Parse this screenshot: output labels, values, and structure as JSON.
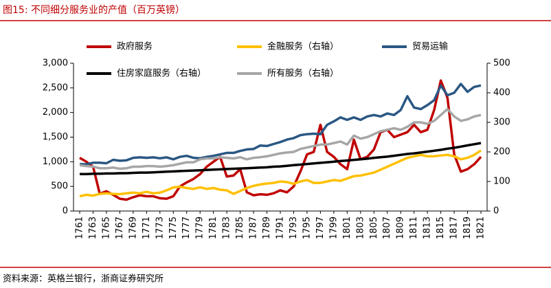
{
  "chart_data": {
    "type": "line",
    "title": "图15:  不同细分服务业的产值（百万英镑）",
    "source": "资料来源：英格兰银行，浙商证券研究所",
    "x": [
      1761,
      1762,
      1763,
      1764,
      1765,
      1766,
      1767,
      1768,
      1769,
      1770,
      1771,
      1772,
      1773,
      1774,
      1775,
      1776,
      1777,
      1778,
      1779,
      1780,
      1781,
      1782,
      1783,
      1784,
      1785,
      1786,
      1787,
      1788,
      1789,
      1790,
      1791,
      1792,
      1793,
      1794,
      1795,
      1796,
      1797,
      1798,
      1799,
      1800,
      1801,
      1802,
      1803,
      1804,
      1805,
      1806,
      1807,
      1808,
      1809,
      1810,
      1811,
      1812,
      1813,
      1814,
      1815,
      1816,
      1817,
      1818,
      1819,
      1820,
      1821
    ],
    "xlim": [
      1761,
      1821
    ],
    "xticks": [
      1761,
      1763,
      1765,
      1767,
      1769,
      1771,
      1773,
      1775,
      1777,
      1779,
      1781,
      1783,
      1785,
      1787,
      1789,
      1791,
      1793,
      1795,
      1797,
      1799,
      1801,
      1803,
      1805,
      1807,
      1809,
      1811,
      1813,
      1815,
      1817,
      1819,
      1821
    ],
    "ylim": [
      0,
      3000
    ],
    "yticks": [
      0,
      500,
      {
        "value": 1000,
        "label": "1,000"
      },
      {
        "value": 1500,
        "label": "1,500"
      },
      {
        "value": 2000,
        "label": "2,000"
      },
      {
        "value": 2500,
        "label": "2,500"
      },
      {
        "value": 3000,
        "label": "3,000"
      }
    ],
    "y2lim": [
      0,
      500
    ],
    "y2ticks": [
      0,
      100,
      200,
      300,
      400,
      500
    ],
    "series": [
      {
        "name": "政府服务",
        "color": "#c00000",
        "values": [
          1080,
          1000,
          900,
          350,
          400,
          330,
          250,
          230,
          280,
          320,
          300,
          300,
          260,
          250,
          300,
          500,
          580,
          650,
          750,
          900,
          1000,
          1100,
          700,
          720,
          850,
          380,
          320,
          340,
          330,
          360,
          420,
          380,
          500,
          800,
          1150,
          1200,
          1750,
          1200,
          1100,
          950,
          850,
          1450,
          1050,
          1100,
          1250,
          1600,
          1650,
          1500,
          1550,
          1600,
          1750,
          1600,
          1650,
          2050,
          2650,
          2300,
          1150,
          800,
          850,
          950,
          1100
        ]
      },
      {
        "name": "金融服务（右轴）",
        "color": "#ffc000",
        "axis": "y2",
        "values": [
          50,
          55,
          52,
          58,
          60,
          58,
          57,
          60,
          62,
          60,
          65,
          60,
          62,
          70,
          80,
          82,
          78,
          75,
          80,
          75,
          78,
          72,
          70,
          58,
          68,
          78,
          85,
          90,
          93,
          95,
          100,
          98,
          92,
          100,
          105,
          95,
          95,
          100,
          105,
          102,
          110,
          118,
          120,
          125,
          130,
          140,
          150,
          160,
          170,
          180,
          185,
          190,
          185,
          185,
          188,
          190,
          185,
          175,
          180,
          190,
          205
        ]
      },
      {
        "name": "贸易运输",
        "color": "#2a5783",
        "values": [
          950,
          950,
          980,
          980,
          970,
          1040,
          1020,
          1030,
          1080,
          1090,
          1080,
          1090,
          1070,
          1090,
          1050,
          1100,
          1120,
          1080,
          1070,
          1100,
          1120,
          1150,
          1180,
          1180,
          1220,
          1250,
          1260,
          1330,
          1320,
          1360,
          1400,
          1450,
          1480,
          1540,
          1560,
          1570,
          1560,
          1750,
          1820,
          1900,
          1850,
          1900,
          1850,
          1920,
          1950,
          1920,
          1980,
          1950,
          2050,
          2330,
          2100,
          2070,
          2150,
          2250,
          2550,
          2350,
          2400,
          2580,
          2420,
          2520,
          2550
        ]
      },
      {
        "name": "住房家庭服务（右轴）",
        "color": "#000000",
        "axis": "y2",
        "values": [
          125,
          125,
          126,
          126,
          127,
          127,
          128,
          128,
          129,
          130,
          130,
          131,
          132,
          133,
          134,
          135,
          136,
          137,
          138,
          139,
          140,
          141,
          142,
          143,
          144,
          145,
          146,
          147,
          148,
          150,
          151,
          153,
          155,
          157,
          159,
          161,
          163,
          165,
          167,
          169,
          171,
          173,
          175,
          177,
          180,
          182,
          184,
          187,
          190,
          193,
          195,
          198,
          201,
          204,
          207,
          211,
          214,
          218,
          222,
          226,
          230
        ]
      },
      {
        "name": "所有服务（右轴）",
        "color": "#a6a6a6",
        "axis": "y2",
        "values": [
          155,
          152,
          150,
          145,
          145,
          147,
          143,
          145,
          150,
          150,
          152,
          152,
          150,
          152,
          155,
          160,
          165,
          165,
          175,
          178,
          178,
          182,
          180,
          178,
          182,
          175,
          180,
          182,
          185,
          190,
          195,
          198,
          200,
          210,
          215,
          220,
          225,
          225,
          230,
          235,
          225,
          255,
          245,
          250,
          260,
          270,
          275,
          280,
          275,
          285,
          300,
          300,
          295,
          305,
          325,
          345,
          320,
          305,
          310,
          320,
          325
        ]
      }
    ]
  }
}
